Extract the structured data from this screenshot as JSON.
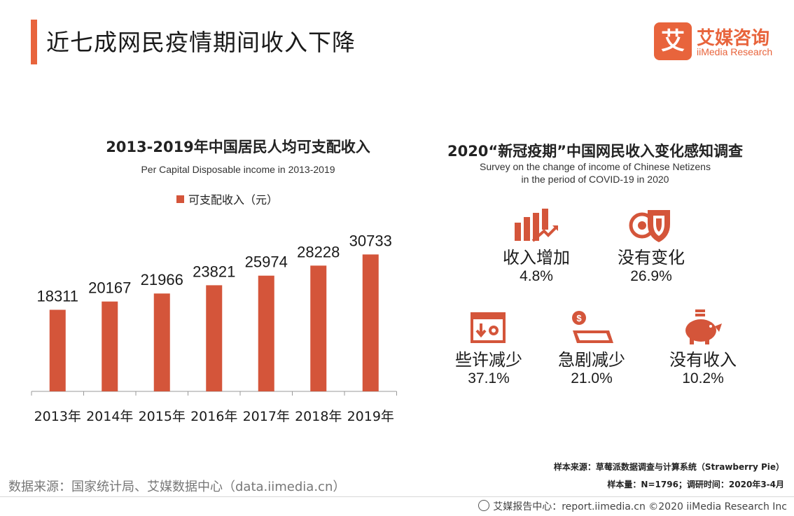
{
  "header": {
    "title": "近七成网民疫情期间收入下降",
    "logo_mark": "艾",
    "logo_cn": "艾媒咨询",
    "logo_en": "iiMedia Research"
  },
  "left_chart": {
    "title": "2013-2019年中国居民人均可支配收入",
    "subtitle": "Per Capital Disposable income in 2013-2019",
    "legend": "可支配收入（元）"
  },
  "chart_data": [
    {
      "type": "bar",
      "title": "2013-2019年中国居民人均可支配收入",
      "subtitle": "Per Capital Disposable income in 2013-2019",
      "categories": [
        "2013年",
        "2014年",
        "2015年",
        "2016年",
        "2017年",
        "2018年",
        "2019年"
      ],
      "series": [
        {
          "name": "可支配收入（元）",
          "values": [
            18311,
            20167,
            21966,
            23821,
            25974,
            28228,
            30733
          ]
        }
      ],
      "ylim": [
        0,
        33000
      ],
      "grid": false,
      "legend_position": "top",
      "color": "#d4553a"
    },
    {
      "type": "table",
      "title": "2020“新冠疫期”中国网民收入变化感知调查",
      "subtitle": "Survey on the change of income of Chinese Netizens in the period of COVID-19 in 2020",
      "categories": [
        "收入增加",
        "没有变化",
        "些许减少",
        "急剧减少",
        "没有收入"
      ],
      "values": [
        "4.8%",
        "26.9%",
        "37.1%",
        "21.0%",
        "10.2%"
      ]
    }
  ],
  "right_chart": {
    "title": "2020“新冠疫期”中国网民收入变化感知调查",
    "subtitle_line1": "Survey on the change of income of Chinese Netizens",
    "subtitle_line2": "in the period of COVID-19 in 2020",
    "items": [
      {
        "label": "收入增加",
        "value": "4.8%",
        "icon": "bar-growth-icon"
      },
      {
        "label": "没有变化",
        "value": "26.9%",
        "icon": "shield-icon"
      },
      {
        "label": "些许减少",
        "value": "37.1%",
        "icon": "download-gear-icon"
      },
      {
        "label": "急剧减少",
        "value": "21.0%",
        "icon": "money-folder-icon"
      },
      {
        "label": "没有收入",
        "value": "10.2%",
        "icon": "piggy-bank-icon"
      }
    ]
  },
  "sources": {
    "left": "数据来源：国家统计局、艾媒数据中心（data.iimedia.cn）",
    "sample_source": "样本来源：草莓派数据调查与计算系统（Strawberry Pie）",
    "sample_size": "样本量：N=1796；调研时间：2020年3-4月"
  },
  "footer": {
    "text": "艾媒报告中心：report.iimedia.cn ©2020 iiMedia Research Inc"
  },
  "colors": {
    "accent": "#e8643c",
    "bar": "#d4553a",
    "icon": "#d4553a"
  }
}
